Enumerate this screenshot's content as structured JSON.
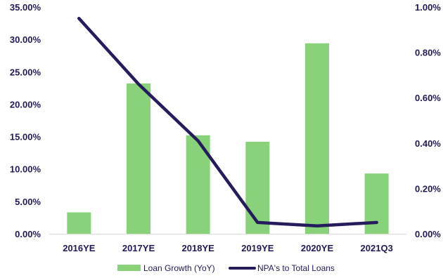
{
  "chart_data": {
    "type": "bar",
    "title": "",
    "categories": [
      "2016YE",
      "2017YE",
      "2018YE",
      "2019YE",
      "2020YE",
      "2021Q3"
    ],
    "series": [
      {
        "name": "Loan Growth (YoY)",
        "type": "bar",
        "axis": "left",
        "color": "#88d37a",
        "values": [
          3.3,
          23.2,
          15.2,
          14.2,
          29.4,
          9.3
        ]
      },
      {
        "name": "NPA's to Total Loans",
        "type": "line",
        "axis": "right",
        "color": "#241c5c",
        "values": [
          0.95,
          0.66,
          0.41,
          0.05,
          0.035,
          0.05
        ]
      }
    ],
    "y_left": {
      "min": 0,
      "max": 35,
      "ticks": [
        "0.00%",
        "5.00%",
        "10.00%",
        "15.00%",
        "20.00%",
        "25.00%",
        "30.00%",
        "35.00%"
      ]
    },
    "y_right": {
      "min": 0,
      "max": 1,
      "ticks": [
        "0.00%",
        "0.20%",
        "0.40%",
        "0.60%",
        "0.80%",
        "1.00%"
      ]
    },
    "grid": false,
    "legend_position": "bottom"
  }
}
